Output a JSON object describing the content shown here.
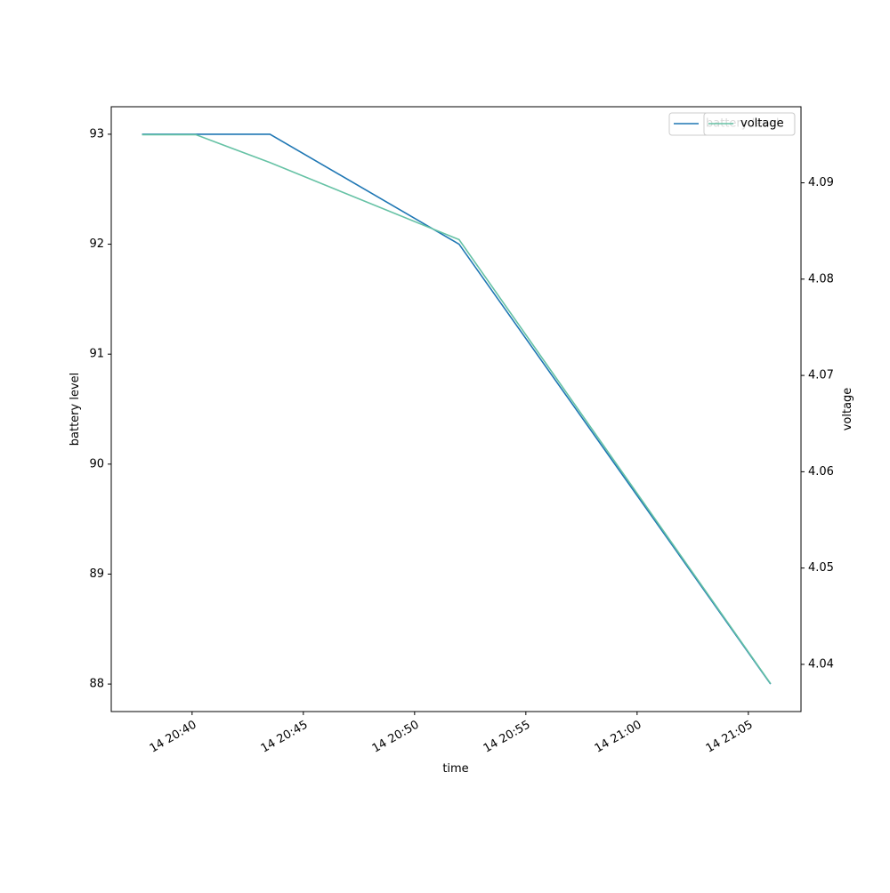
{
  "chart_data": {
    "type": "line",
    "x_label": "time",
    "y_label": "battery level",
    "y2_label": "voltage",
    "x": [
      "14 20:37:45",
      "14 20:40:10",
      "14 20:43:30",
      "14 20:52:00",
      "14 21:06:00"
    ],
    "series": [
      {
        "name": "battery level",
        "color": "#1f77b4",
        "values": [
          93,
          93,
          93,
          92,
          88
        ]
      },
      {
        "name": "voltage",
        "color": "#66c2a5",
        "axis": "y2",
        "values": [
          4.095,
          4.095,
          4.0921,
          4.0841,
          4.038
        ]
      }
    ],
    "xlim": [
      "14 20:36:22",
      "14 21:07:22"
    ],
    "xticks": [
      "14 20:40",
      "14 20:45",
      "14 20:50",
      "14 20:55",
      "14 21:00",
      "14 21:05"
    ],
    "ylim": [
      87.75,
      93.25
    ],
    "yticks": [
      88,
      89,
      90,
      91,
      92,
      93
    ],
    "y2lim": [
      4.0351,
      4.0979
    ],
    "y2ticks": [
      4.04,
      4.05,
      4.06,
      4.07,
      4.08,
      4.09
    ],
    "legend": "upper right"
  }
}
